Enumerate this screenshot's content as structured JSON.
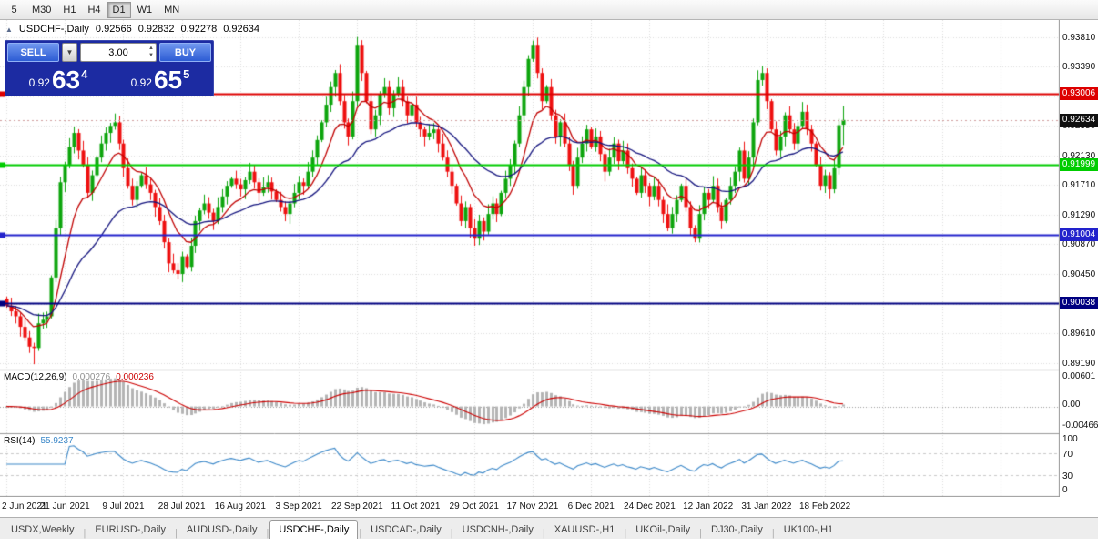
{
  "toolbar": {
    "timeframes": [
      "5",
      "M30",
      "H1",
      "H4",
      "D1",
      "W1",
      "MN"
    ],
    "active_timeframe": "D1"
  },
  "chart": {
    "title": {
      "collapse_icon": "▲",
      "symbol": "USDCHF-,Daily",
      "open": "0.92566",
      "high": "0.92832",
      "low": "0.92278",
      "close": "0.92634"
    },
    "one_click": {
      "sell_label": "SELL",
      "buy_label": "BUY",
      "lot": "3.00",
      "sell_price": {
        "prefix": "0.92",
        "big": "63",
        "sup": "4"
      },
      "buy_price": {
        "prefix": "0.92",
        "big": "65",
        "sup": "5"
      }
    }
  },
  "indicators": {
    "macd": {
      "label": "MACD(12,26,9)",
      "value_main": "0.000276",
      "value_signal": "0.000236",
      "axis": [
        "0.00601",
        "0.00",
        "-0.00466"
      ]
    },
    "rsi": {
      "label": "RSI(14)",
      "value": "55.9237",
      "axis": [
        "100",
        "70",
        "30",
        "0"
      ],
      "levels": [
        70,
        30
      ]
    }
  },
  "chart_data": {
    "type": "candlestick",
    "symbol": "USDCHF-",
    "timeframe": "Daily",
    "title": "USDCHF-,Daily",
    "x_axis": {
      "labels": [
        "2 Jun 2021",
        "21 Jun 2021",
        "9 Jul 2021",
        "28 Jul 2021",
        "16 Aug 2021",
        "3 Sep 2021",
        "22 Sep 2021",
        "11 Oct 2021",
        "29 Oct 2021",
        "17 Nov 2021",
        "6 Dec 2021",
        "24 Dec 2021",
        "12 Jan 2022",
        "31 Jan 2022",
        "18 Feb 2022"
      ]
    },
    "y_axis": {
      "ticks": [
        "0.93810",
        "0.93390",
        "0.92970",
        "0.92550",
        "0.92130",
        "0.91710",
        "0.91290",
        "0.90870",
        "0.90450",
        "0.90030",
        "0.89610",
        "0.89190"
      ]
    },
    "ohlc_last": {
      "open": 0.92566,
      "high": 0.92832,
      "low": 0.92278,
      "close": 0.92634
    },
    "closes": [
      0.9,
      0.8992,
      0.8985,
      0.897,
      0.8955,
      0.8942,
      0.894,
      0.8975,
      0.898,
      0.8985,
      0.904,
      0.911,
      0.9175,
      0.92,
      0.9225,
      0.9245,
      0.922,
      0.92,
      0.916,
      0.9185,
      0.921,
      0.923,
      0.9245,
      0.9255,
      0.926,
      0.923,
      0.9195,
      0.917,
      0.915,
      0.917,
      0.9185,
      0.9172,
      0.916,
      0.914,
      0.912,
      0.909,
      0.906,
      0.905,
      0.9045,
      0.907,
      0.9055,
      0.9085,
      0.912,
      0.9135,
      0.9145,
      0.9132,
      0.912,
      0.914,
      0.9155,
      0.917,
      0.918,
      0.9172,
      0.9165,
      0.9178,
      0.919,
      0.9175,
      0.916,
      0.9168,
      0.9175,
      0.9162,
      0.915,
      0.914,
      0.913,
      0.9145,
      0.916,
      0.9175,
      0.917,
      0.919,
      0.921,
      0.9235,
      0.926,
      0.9285,
      0.931,
      0.933,
      0.929,
      0.926,
      0.924,
      0.929,
      0.937,
      0.933,
      0.929,
      0.925,
      0.927,
      0.93,
      0.931,
      0.928,
      0.93,
      0.931,
      0.929,
      0.927,
      0.9285,
      0.926,
      0.925,
      0.924,
      0.9245,
      0.925,
      0.923,
      0.921,
      0.919,
      0.917,
      0.9145,
      0.912,
      0.914,
      0.911,
      0.9095,
      0.912,
      0.9105,
      0.913,
      0.9145,
      0.913,
      0.916,
      0.918,
      0.92,
      0.923,
      0.927,
      0.931,
      0.935,
      0.937,
      0.933,
      0.929,
      0.931,
      0.927,
      0.924,
      0.926,
      0.923,
      0.92,
      0.917,
      0.921,
      0.923,
      0.925,
      0.9225,
      0.924,
      0.9215,
      0.919,
      0.921,
      0.923,
      0.9205,
      0.922,
      0.9195,
      0.918,
      0.916,
      0.9185,
      0.917,
      0.9155,
      0.917,
      0.915,
      0.913,
      0.911,
      0.913,
      0.915,
      0.917,
      0.914,
      0.911,
      0.9095,
      0.913,
      0.916,
      0.915,
      0.917,
      0.914,
      0.912,
      0.915,
      0.917,
      0.919,
      0.922,
      0.918,
      0.921,
      0.926,
      0.932,
      0.933,
      0.929,
      0.925,
      0.922,
      0.924,
      0.927,
      0.925,
      0.923,
      0.9255,
      0.9275,
      0.925,
      0.923,
      0.92,
      0.917,
      0.9185,
      0.9165,
      0.9195,
      0.9256,
      0.92634
    ],
    "wick_overrides": {
      "6": {
        "low": 0.8917
      },
      "78": {
        "high": 0.9381
      },
      "104": {
        "low": 0.9085
      },
      "117": {
        "high": 0.9376
      },
      "153": {
        "low": 0.909
      }
    },
    "hlines": [
      {
        "price": 0.93006,
        "label": "0.93006",
        "color": "#dd0000",
        "width": 2
      },
      {
        "price": 0.91999,
        "label": "0.91999",
        "color": "#00cc00",
        "width": 2
      },
      {
        "price": 0.91004,
        "label": "0.91004",
        "color": "#2222cc",
        "width": 2
      },
      {
        "price": 0.90038,
        "label": "0.90038",
        "color": "#000080",
        "width": 2
      }
    ],
    "current_price": {
      "value": 0.92634,
      "label": "0.92634"
    },
    "overlays": [
      {
        "name": "ma-fast",
        "type": "ema",
        "period": 10,
        "color": "#c00000"
      },
      {
        "name": "ma-slow",
        "type": "ema",
        "period": 30,
        "color": "#14147e"
      }
    ],
    "colors": {
      "up": "#0da50d",
      "down": "#ee1010",
      "grid": "#dcdcdc",
      "macd_hist": "#b4b4b4",
      "macd_signal": "#cc0000",
      "rsi": "#3a87c8"
    }
  },
  "tabs": {
    "items": [
      "USDX,Weekly",
      "EURUSD-,Daily",
      "AUDUSD-,Daily",
      "USDCHF-,Daily",
      "USDCAD-,Daily",
      "USDCNH-,Daily",
      "XAUUSD-,H1",
      "UKOil-,Daily",
      "DJ30-,Daily",
      "UK100-,H1"
    ],
    "active": "USDCHF-,Daily"
  }
}
